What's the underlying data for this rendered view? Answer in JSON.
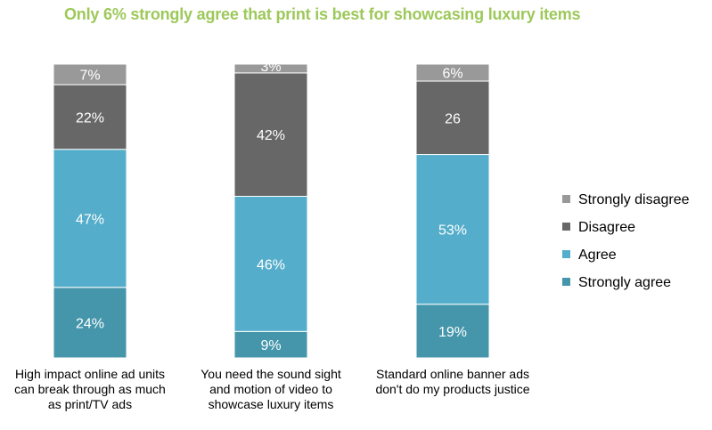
{
  "chart_data": {
    "type": "bar",
    "stacked": true,
    "title": "Only 6% strongly agree that print is best for showcasing luxury items",
    "categories": [
      [
        "High impact online ad units",
        "can break through as much",
        "as print/TV ads"
      ],
      [
        "You need the sound sight",
        "and motion of video to",
        "showcase luxury items"
      ],
      [
        "Standard online banner ads",
        "don't do my products justice"
      ]
    ],
    "series": [
      {
        "name": "Strongly agree",
        "color": "#4596ab",
        "values": [
          24,
          9,
          19
        ],
        "labels": [
          "24%",
          "9%",
          "19%"
        ]
      },
      {
        "name": "Agree",
        "color": "#54adca",
        "values": [
          47,
          46,
          53
        ],
        "labels": [
          "47%",
          "46%",
          "53%"
        ]
      },
      {
        "name": "Disagree",
        "color": "#676767",
        "values": [
          22,
          42,
          26
        ],
        "labels": [
          "22%",
          "42%",
          "26"
        ]
      },
      {
        "name": "Strongly disagree",
        "color": "#999999",
        "values": [
          7,
          3,
          6
        ],
        "labels": [
          "7%",
          "3%",
          "6%"
        ]
      }
    ],
    "legend_order": [
      "Strongly disagree",
      "Disagree",
      "Agree",
      "Strongly agree"
    ],
    "legend_position": "right",
    "ylim": [
      0,
      100
    ],
    "grid": false
  }
}
